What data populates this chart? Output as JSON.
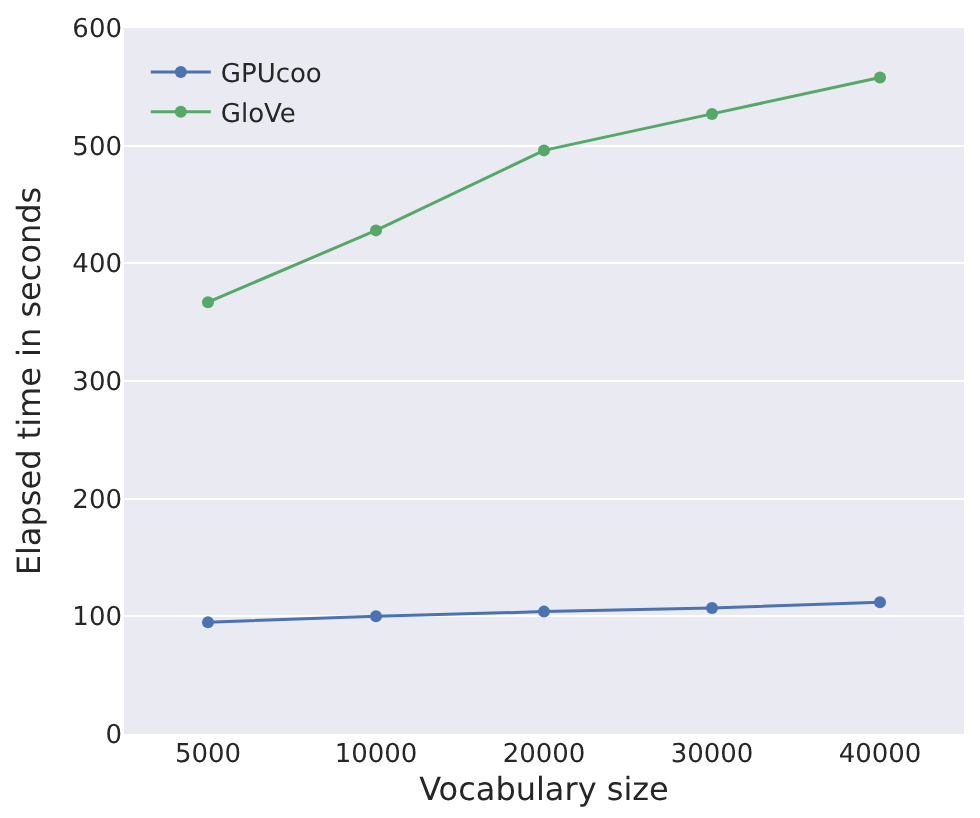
{
  "chart_data": {
    "type": "line",
    "xlabel": "Vocabulary size",
    "ylabel": "Elapsed time in seconds",
    "categories": [
      "5000",
      "10000",
      "20000",
      "30000",
      "40000"
    ],
    "series": [
      {
        "name": "GPUcoo",
        "color": "#4c72b0",
        "values": [
          95,
          100,
          104,
          107,
          112
        ]
      },
      {
        "name": "GloVe",
        "color": "#55a868",
        "values": [
          367,
          428,
          496,
          527,
          558
        ]
      }
    ],
    "ylim": [
      0,
      600
    ],
    "yticks": [
      0,
      100,
      200,
      300,
      400,
      500,
      600
    ],
    "grid": "y",
    "legend": "top left",
    "marker": "circle",
    "line_style": "solid"
  }
}
